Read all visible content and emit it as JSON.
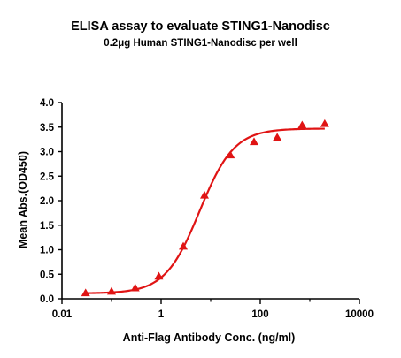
{
  "chart_data": {
    "type": "scatter",
    "title": "ELISA assay to evaluate STING1-Nanodisc",
    "subtitle": "0.2μg Human STING1-Nanodisc per well",
    "xlabel": "Anti-Flag Antibody Conc. (ng/ml)",
    "ylabel": "Mean Abs.(OD450)",
    "xscale": "log",
    "xlim": [
      0.01,
      10000
    ],
    "ylim": [
      0.0,
      4.0
    ],
    "x_ticks": [
      0.01,
      1,
      100,
      10000
    ],
    "x_tick_labels": [
      "0.01",
      "1",
      "100",
      "10000"
    ],
    "y_ticks": [
      0.0,
      0.5,
      1.0,
      1.5,
      2.0,
      2.5,
      3.0,
      3.5,
      4.0
    ],
    "y_tick_labels": [
      "0.0",
      "0.5",
      "1.0",
      "1.5",
      "2.0",
      "2.5",
      "3.0",
      "3.5",
      "4.0"
    ],
    "grid": false,
    "series": [
      {
        "marker": "triangle",
        "color": "#e01414",
        "x": [
          0.03,
          0.1,
          0.3,
          0.9,
          2.8,
          7.5,
          25,
          75,
          220,
          700,
          2000
        ],
        "y": [
          0.12,
          0.15,
          0.22,
          0.46,
          1.07,
          2.11,
          2.93,
          3.2,
          3.29,
          3.54,
          3.57
        ]
      }
    ],
    "fit_curve": {
      "model": "4PL",
      "bottom": 0.11,
      "top": 3.47,
      "ec50": 6.0,
      "hill": 1.25,
      "x_range": [
        0.03,
        2000
      ],
      "color": "#e01414"
    }
  }
}
